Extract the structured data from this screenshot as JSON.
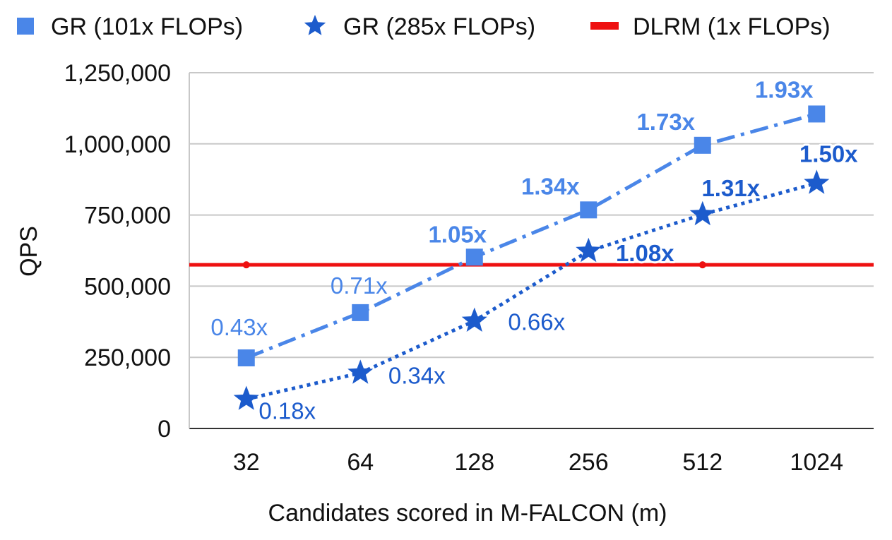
{
  "chart_data": {
    "type": "line",
    "xlabel": "Candidates scored in M-FALCON (m)",
    "ylabel": "QPS",
    "categories": [
      "32",
      "64",
      "128",
      "256",
      "512",
      "1024"
    ],
    "ylim": [
      0,
      1250000
    ],
    "yticks": [
      {
        "value": 0,
        "label": "0"
      },
      {
        "value": 250000,
        "label": "250,000"
      },
      {
        "value": 500000,
        "label": "500,000"
      },
      {
        "value": 750000,
        "label": "750,000"
      },
      {
        "value": 1000000,
        "label": "1,000,000"
      },
      {
        "value": 1250000,
        "label": "1,250,000"
      }
    ],
    "grid": true,
    "legend_position": "top",
    "series": [
      {
        "name": "GR (101x FLOPs)",
        "marker": "square",
        "line_style": "dash-dot",
        "color": "#4a86e8",
        "values": [
          248000,
          407000,
          602000,
          768000,
          995000,
          1105000
        ],
        "labels": [
          "0.43x",
          "0.71x",
          "1.05x",
          "1.34x",
          "1.73x",
          "1.93x"
        ],
        "label_bold": [
          false,
          false,
          true,
          true,
          true,
          true
        ]
      },
      {
        "name": "GR (285x FLOPs)",
        "marker": "star",
        "line_style": "dotted",
        "color": "#1c5bcc",
        "values": [
          103000,
          195000,
          378000,
          623000,
          752000,
          862000
        ],
        "labels": [
          "0.18x",
          "0.34x",
          "0.66x",
          "1.08x",
          "1.31x",
          "1.50x"
        ],
        "label_bold": [
          false,
          false,
          false,
          true,
          true,
          true
        ]
      },
      {
        "name": "DLRM (1x FLOPs)",
        "marker": "none",
        "line_style": "solid",
        "color": "#ee1111",
        "values": [
          575000,
          575000,
          575000,
          575000,
          575000,
          575000
        ]
      }
    ]
  }
}
